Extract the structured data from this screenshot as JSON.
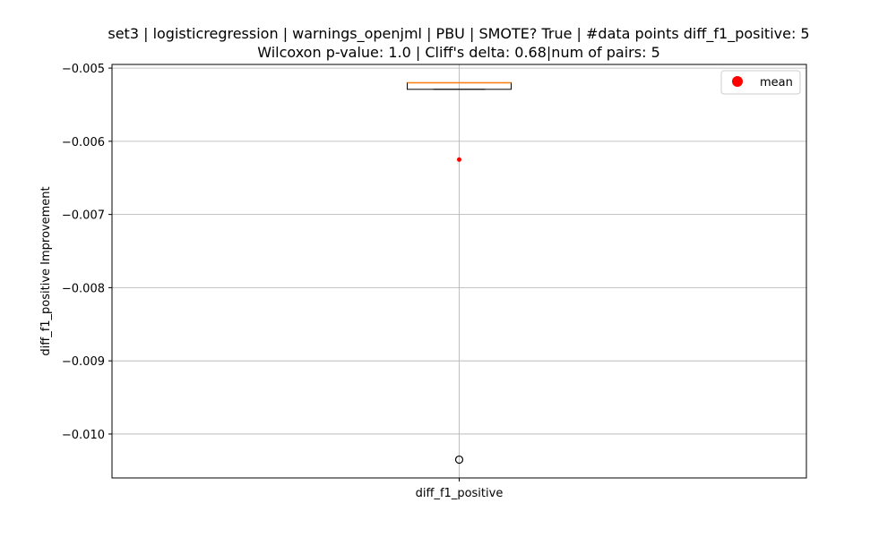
{
  "chart_data": {
    "type": "box",
    "title_line1": "set3 | logisticregression | warnings_openjml | PBU | SMOTE? True | #data points diff_f1_positive: 5",
    "title_line2": "Wilcoxon p-value: 1.0 | Cliff's delta: 0.68|num of pairs: 5",
    "xlabel": "",
    "ylabel": "diff_f1_positive Improvement",
    "categories": [
      "diff_f1_positive"
    ],
    "ylim": [
      -0.0106,
      -0.00495
    ],
    "yticks": [
      -0.005,
      -0.006,
      -0.007,
      -0.008,
      -0.009,
      -0.01
    ],
    "ytick_labels": [
      "−0.005",
      "−0.006",
      "−0.007",
      "−0.008",
      "−0.009",
      "−0.010"
    ],
    "grid": true,
    "legend": {
      "placement": "top-right",
      "entries": [
        {
          "label": "mean",
          "color": "#ff0000",
          "marker": "circle"
        }
      ]
    },
    "box": {
      "q1": -0.00529,
      "median": -0.0052,
      "q3": -0.0052,
      "whisker_low": -0.00529,
      "whisker_high": -0.0052,
      "mean": -0.00625,
      "outliers": [
        -0.01035
      ]
    },
    "colors": {
      "median": "#ff7f0e",
      "mean": "#ff0000",
      "grid": "#b0b0b0",
      "box": "#000000"
    }
  }
}
